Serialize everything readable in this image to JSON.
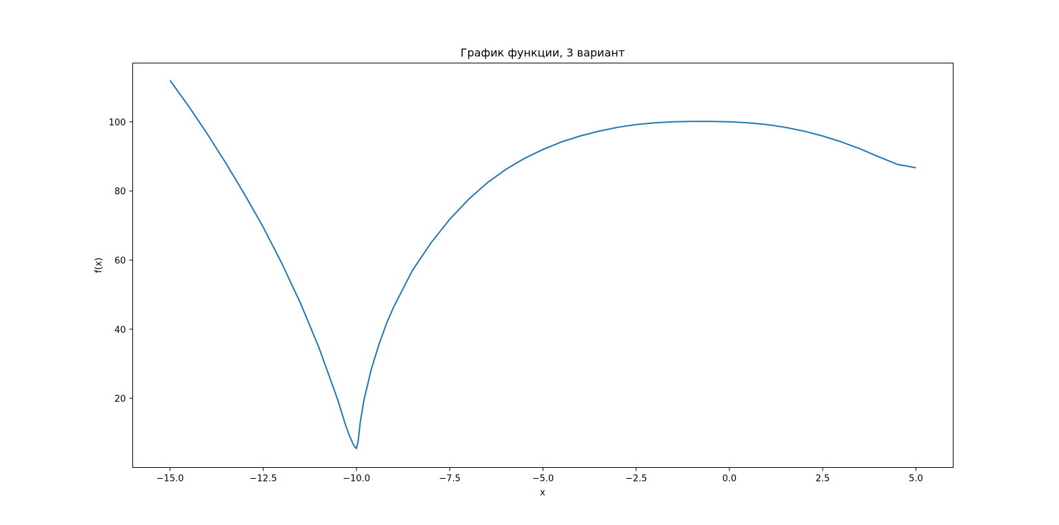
{
  "chart_data": {
    "type": "line",
    "title": "График функции, 3 вариант",
    "xlabel": "x",
    "ylabel": "f(x)",
    "xlim": [
      -16,
      6
    ],
    "ylim": [
      0,
      117
    ],
    "grid": false,
    "legend": "none",
    "x_ticks": [
      -15.0,
      -12.5,
      -10.0,
      -7.5,
      -5.0,
      -2.5,
      0.0,
      2.5,
      5.0
    ],
    "x_tick_labels": [
      "−15.0",
      "−12.5",
      "−10.0",
      "−7.5",
      "−5.0",
      "−2.5",
      "0.0",
      "2.5",
      "5.0"
    ],
    "y_ticks": [
      20,
      40,
      60,
      80,
      100
    ],
    "y_tick_labels": [
      "20",
      "40",
      "60",
      "80",
      "100"
    ],
    "series": [
      {
        "color": "#1f77b4",
        "x": [
          -15.0,
          -14.5,
          -14.0,
          -13.5,
          -13.0,
          -12.5,
          -12.0,
          -11.5,
          -11.0,
          -10.75,
          -10.5,
          -10.3,
          -10.2,
          -10.1,
          -10.05,
          -10.0,
          -9.95,
          -9.9,
          -9.8,
          -9.6,
          -9.4,
          -9.2,
          -9.0,
          -8.5,
          -8.0,
          -7.5,
          -7.0,
          -6.5,
          -6.0,
          -5.5,
          -5.0,
          -4.5,
          -4.0,
          -3.5,
          -3.0,
          -2.5,
          -2.0,
          -1.5,
          -1.0,
          -0.5,
          0.0,
          0.5,
          1.0,
          1.5,
          2.0,
          2.5,
          3.0,
          3.5,
          4.0,
          4.5,
          5.0
        ],
        "y": [
          112.0,
          104.5,
          96.5,
          88.0,
          79.0,
          69.5,
          59.0,
          47.5,
          34.5,
          27.0,
          19.5,
          12.5,
          9.5,
          7.0,
          6.0,
          5.5,
          8.0,
          13.0,
          19.5,
          28.5,
          35.5,
          41.5,
          46.5,
          57.0,
          65.0,
          71.8,
          77.5,
          82.3,
          86.2,
          89.4,
          92.0,
          94.2,
          95.9,
          97.3,
          98.4,
          99.2,
          99.7,
          100.0,
          100.1,
          100.1,
          100.0,
          99.7,
          99.2,
          98.4,
          97.3,
          95.9,
          94.2,
          92.2,
          89.9,
          87.7,
          86.7
        ]
      }
    ]
  }
}
